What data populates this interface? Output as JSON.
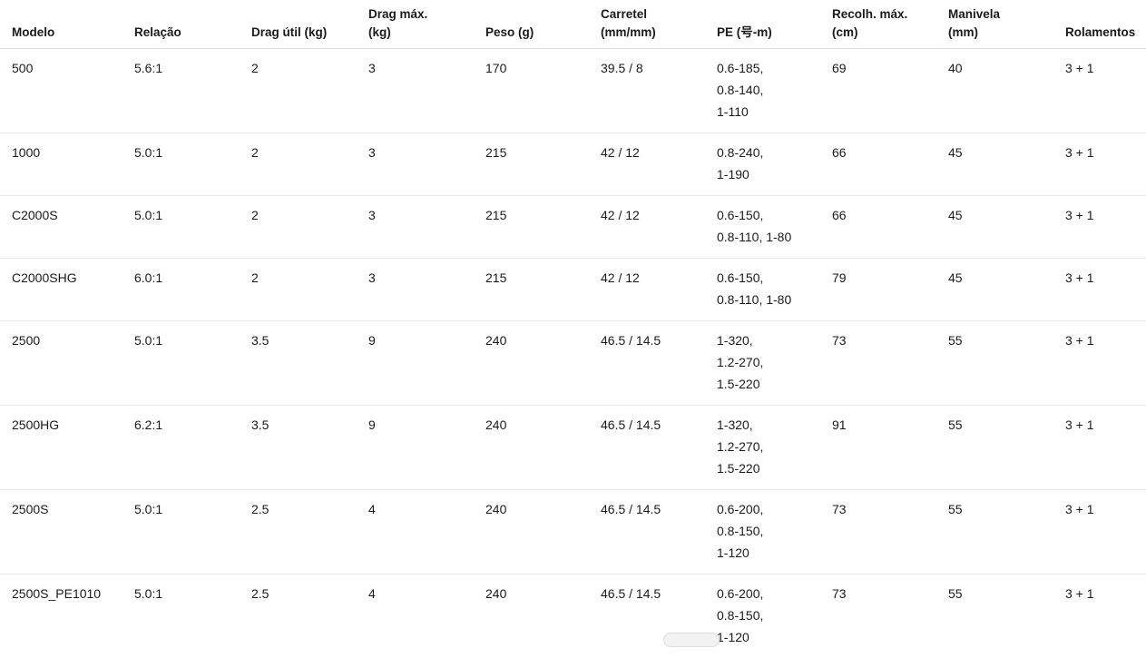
{
  "chart_data": {
    "type": "table",
    "title": "",
    "columns": [
      "Modelo",
      "Relação",
      "Drag útil (kg)",
      "Drag máx. (kg)",
      "Peso (g)",
      "Carretel (mm/mm)",
      "PE (号-m)",
      "Recolh. máx. (cm)",
      "Manivela (mm)",
      "Rolamentos"
    ],
    "rows": [
      [
        "500",
        "5.6:1",
        "2",
        "3",
        "170",
        "39.5 / 8",
        "0.6-185, 0.8-140, 1-110",
        "69",
        "40",
        "3 + 1"
      ],
      [
        "1000",
        "5.0:1",
        "2",
        "3",
        "215",
        "42 / 12",
        "0.8-240, 1-190",
        "66",
        "45",
        "3 + 1"
      ],
      [
        "C2000S",
        "5.0:1",
        "2",
        "3",
        "215",
        "42 / 12",
        "0.6-150, 0.8-110, 1-80",
        "66",
        "45",
        "3 + 1"
      ],
      [
        "C2000SHG",
        "6.0:1",
        "2",
        "3",
        "215",
        "42 / 12",
        "0.6-150, 0.8-110, 1-80",
        "79",
        "45",
        "3 + 1"
      ],
      [
        "2500",
        "5.0:1",
        "3.5",
        "9",
        "240",
        "46.5 / 14.5",
        "1-320, 1.2-270, 1.5-220",
        "73",
        "55",
        "3 + 1"
      ],
      [
        "2500HG",
        "6.2:1",
        "3.5",
        "9",
        "240",
        "46.5 / 14.5",
        "1-320, 1.2-270, 1.5-220",
        "91",
        "55",
        "3 + 1"
      ],
      [
        "2500S",
        "5.0:1",
        "2.5",
        "4",
        "240",
        "46.5 / 14.5",
        "0.6-200, 0.8-150, 1-120",
        "73",
        "55",
        "3 + 1"
      ],
      [
        "2500S_PE1010",
        "5.0:1",
        "2.5",
        "4",
        "240",
        "46.5 / 14.5",
        "0.6-200, 0.8-150, 1-120",
        "73",
        "55",
        "3 + 1"
      ]
    ],
    "layout": {
      "grid": "horizontal row dividers only",
      "header_alignment": "bottom-left",
      "cell_alignment": "top-left"
    }
  },
  "display": {
    "header_lines": [
      "Modelo",
      "Relação",
      "Drag útil (kg)",
      "Drag máx.\n(kg)",
      "Peso (g)",
      "Carretel\n(mm/mm)",
      "PE (号-m)",
      "Recolh. máx.\n(cm)",
      "Manivela\n(mm)",
      "Rolamentos"
    ],
    "pe_cell_lines": [
      "0.6-185,\n0.8-140,\n1-110",
      "0.8-240,\n1-190",
      "0.6-150,\n0.8-110, 1-80",
      "0.6-150,\n0.8-110, 1-80",
      "1-320,\n1.2-270,\n1.5-220",
      "1-320,\n1.2-270,\n1.5-220",
      "0.6-200,\n0.8-150,\n1-120",
      "0.6-200,\n0.8-150,\n1-120"
    ]
  },
  "colors": {
    "background": "#ffffff",
    "text": "#1a1a1a",
    "header_border": "#dedede",
    "row_border": "#e9e9e9",
    "scroll_pill": "#f2f2f2"
  }
}
